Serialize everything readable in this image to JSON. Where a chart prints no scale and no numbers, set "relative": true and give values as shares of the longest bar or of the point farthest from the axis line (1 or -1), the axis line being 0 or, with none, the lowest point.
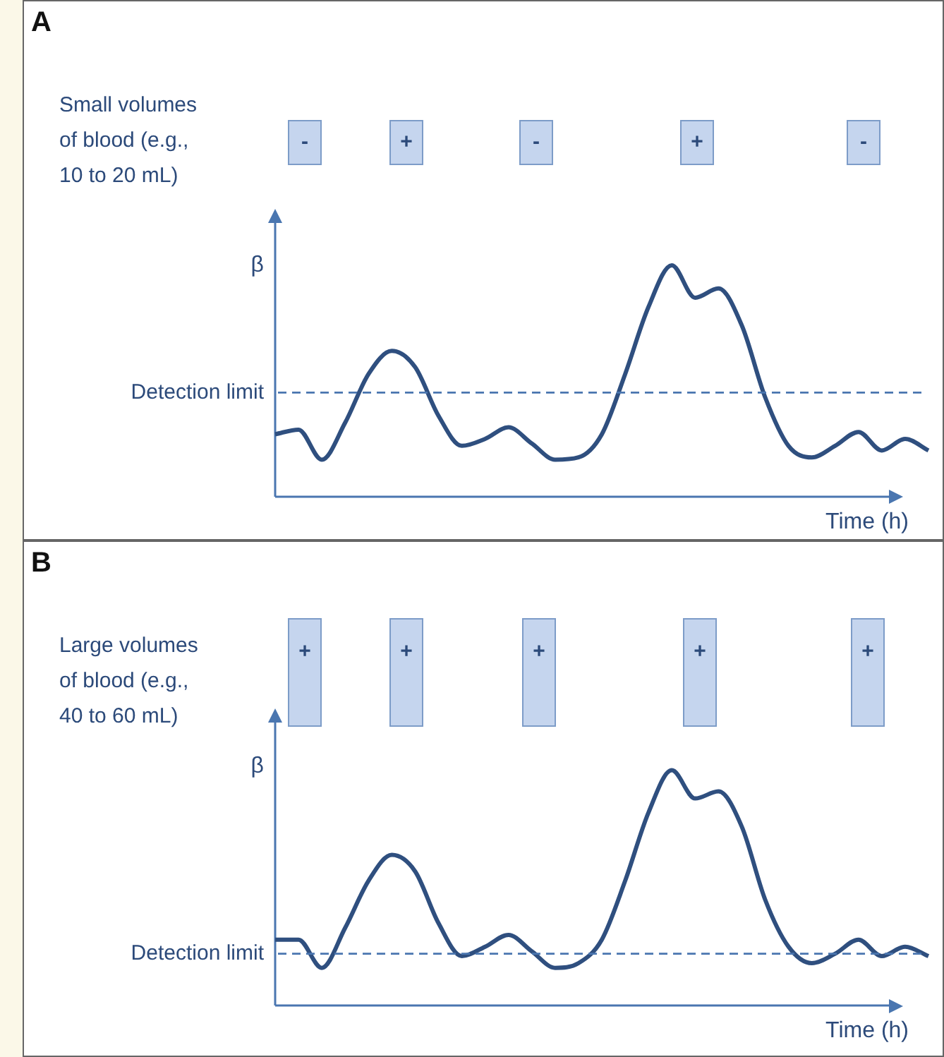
{
  "chart_data": [
    {
      "type": "line",
      "ylabel": "β",
      "xlabel": "Time (h)",
      "relative": true,
      "marker": "none",
      "categories": [
        null,
        null,
        null,
        null,
        null,
        null,
        null,
        null,
        null,
        null,
        null,
        null,
        null,
        null,
        null,
        null,
        null,
        null,
        null,
        null,
        null,
        null,
        null,
        null,
        null,
        null,
        null,
        null,
        null
      ],
      "series": [
        {
          "color": "#2f4f7f",
          "values": [
            0.27,
            0.29,
            0.16,
            0.32,
            0.53,
            0.63,
            0.56,
            0.35,
            0.22,
            0.25,
            0.3,
            0.23,
            0.16,
            0.17,
            0.27,
            0.53,
            0.82,
            1,
            0.86,
            0.9,
            0.74,
            0.43,
            0.22,
            0.17,
            0.22,
            0.28,
            0.2,
            0.25,
            0.2
          ]
        }
      ],
      "ref_lines": [
        {
          "axis": "y",
          "value": 0.45,
          "label": "Detection limit",
          "color": "#4a76b0",
          "line_style": "dashed"
        }
      ],
      "annotations": [
        "A",
        "Small volumes of blood (e.g., 10 to 20 mL)",
        "-",
        "+",
        "-",
        "+",
        "-"
      ]
    },
    {
      "type": "line",
      "ylabel": "β",
      "xlabel": "Time (h)",
      "relative": true,
      "marker": "none",
      "categories": [
        null,
        null,
        null,
        null,
        null,
        null,
        null,
        null,
        null,
        null,
        null,
        null,
        null,
        null,
        null,
        null,
        null,
        null,
        null,
        null,
        null,
        null,
        null,
        null,
        null,
        null,
        null,
        null,
        null
      ],
      "series": [
        {
          "color": "#2f4f7f",
          "values": [
            0.28,
            0.28,
            0.16,
            0.33,
            0.53,
            0.64,
            0.57,
            0.35,
            0.21,
            0.25,
            0.3,
            0.23,
            0.16,
            0.18,
            0.28,
            0.53,
            0.82,
            1,
            0.88,
            0.91,
            0.76,
            0.45,
            0.25,
            0.18,
            0.22,
            0.28,
            0.21,
            0.25,
            0.21
          ]
        }
      ],
      "ref_lines": [
        {
          "axis": "y",
          "value": 0.22,
          "label": "Detection limit",
          "color": "#4a76b0",
          "line_style": "dashed"
        }
      ],
      "annotations": [
        "B",
        "Large volumes of blood (e.g., 40 to 60 mL)",
        "+",
        "+",
        "+",
        "+",
        "+"
      ]
    }
  ]
}
